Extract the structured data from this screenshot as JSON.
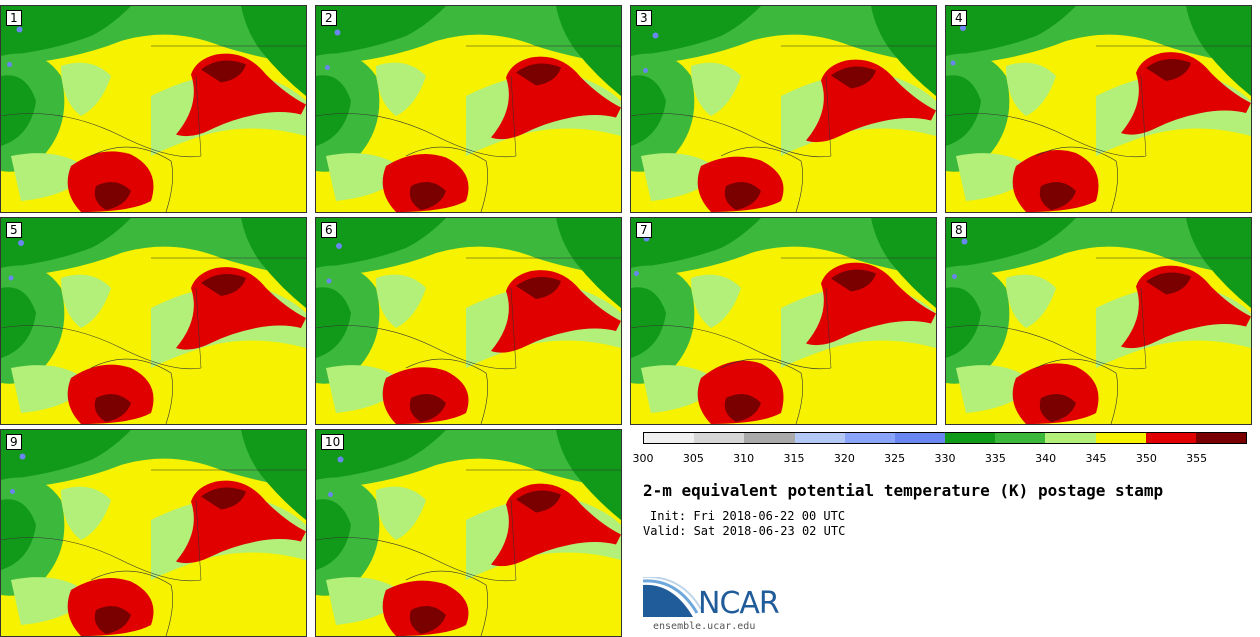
{
  "panels": [
    {
      "label": "1"
    },
    {
      "label": "2"
    },
    {
      "label": "3"
    },
    {
      "label": "4"
    },
    {
      "label": "5"
    },
    {
      "label": "6"
    },
    {
      "label": "7"
    },
    {
      "label": "8"
    },
    {
      "label": "9"
    },
    {
      "label": "10"
    }
  ],
  "colorbar": {
    "colors": [
      "#f0f0f0",
      "#d6d6d6",
      "#aaaaaa",
      "#b4c8f5",
      "#8aa4fa",
      "#6a86f0",
      "#119a19",
      "#3cb83c",
      "#b2f07a",
      "#f6f200",
      "#e00000",
      "#7a0000"
    ],
    "ticks": [
      "300",
      "305",
      "310",
      "315",
      "320",
      "325",
      "330",
      "335",
      "340",
      "345",
      "350",
      "355"
    ]
  },
  "title": "2-m equivalent potential temperature (K) postage stamp",
  "init": "Init: Fri 2018-06-22 00 UTC",
  "valid": "Valid: Sat 2018-06-23 02 UTC",
  "logo_text": "NCAR",
  "url": "ensemble.ucar.edu",
  "map_colors": {
    "dark_green": "#119a19",
    "green": "#3cb83c",
    "light_green": "#b2f07a",
    "yellow": "#f6f200",
    "red": "#e00000",
    "dark_red": "#7a0000",
    "blue": "#6a86f0"
  }
}
